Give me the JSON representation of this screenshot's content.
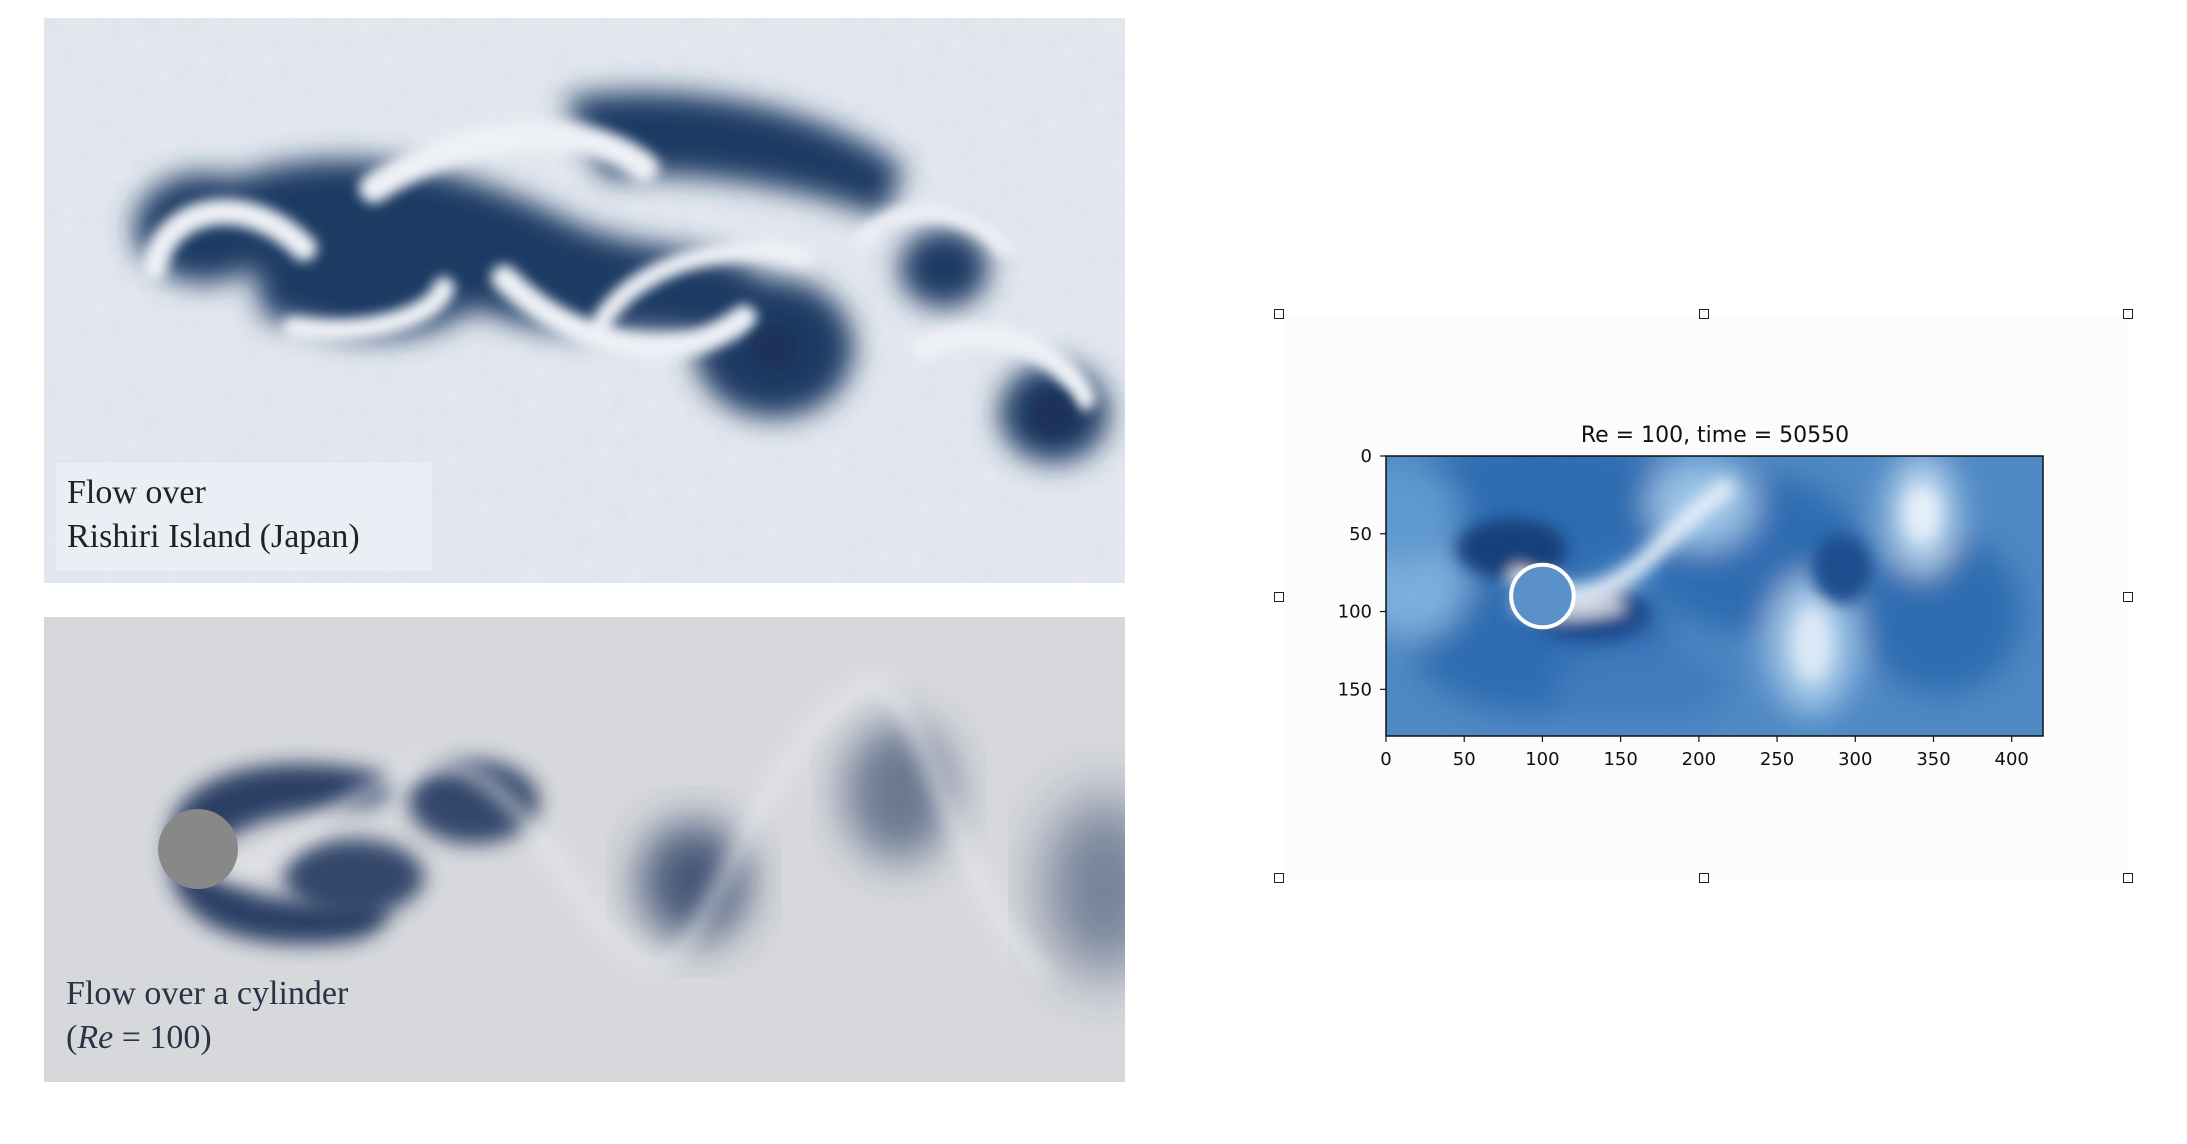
{
  "panels": {
    "top": {
      "caption_line1": "Flow over",
      "caption_line2": "Rishiri Island (Japan)"
    },
    "bottom": {
      "caption_line1": "Flow over a cylinder",
      "caption_re_symbol": "Re",
      "caption_re_value": " = 100)"
    }
  },
  "chart_data": {
    "type": "heatmap",
    "title": "Re = 100, time = 50550",
    "xlim": [
      0,
      420
    ],
    "ylim": [
      180,
      0
    ],
    "x_ticks": [
      "0",
      "50",
      "100",
      "150",
      "200",
      "250",
      "300",
      "350",
      "400"
    ],
    "y_ticks": [
      "0",
      "50",
      "100",
      "150"
    ],
    "colormap": "Blues",
    "grid": false,
    "obstacle": {
      "shape": "circle",
      "center_x": 100,
      "center_y": 90,
      "radius": 20
    }
  },
  "colors": {
    "ocean": "#1f3a63",
    "cloud": "#e8ecf2",
    "sim_background": "#d7d8dc",
    "sim_vortex": "#24375e",
    "cylinder": "#888888",
    "field_base": "#4f89c4"
  }
}
